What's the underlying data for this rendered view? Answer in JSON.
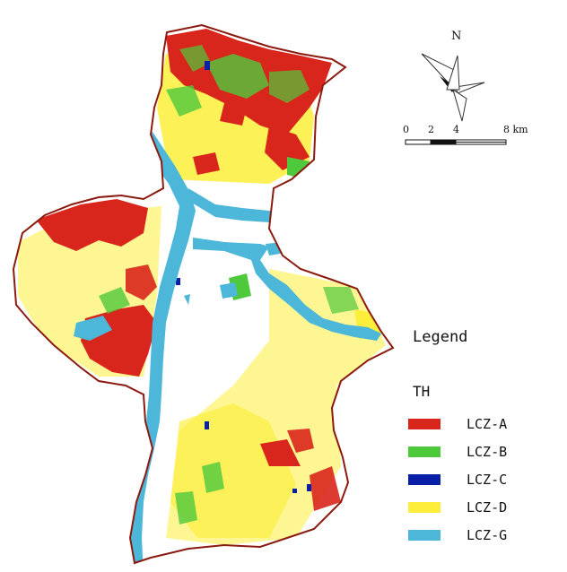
{
  "north_label": "N",
  "scale_bar": {
    "ticks": [
      "0",
      "2",
      "4",
      "8 km"
    ]
  },
  "legend": {
    "title": "Legend",
    "subtitle": "TH",
    "items": [
      {
        "label": "LCZ-A",
        "color": "#d9261c"
      },
      {
        "label": "LCZ-B",
        "color": "#4fc93c"
      },
      {
        "label": "LCZ-C",
        "color": "#0a1fa8"
      },
      {
        "label": "LCZ-D",
        "color": "#fcee3a"
      },
      {
        "label": "LCZ-G",
        "color": "#4cb7d8"
      }
    ]
  },
  "colors": {
    "boundary": "#8b1a10",
    "urban_background": "#ffffff"
  }
}
